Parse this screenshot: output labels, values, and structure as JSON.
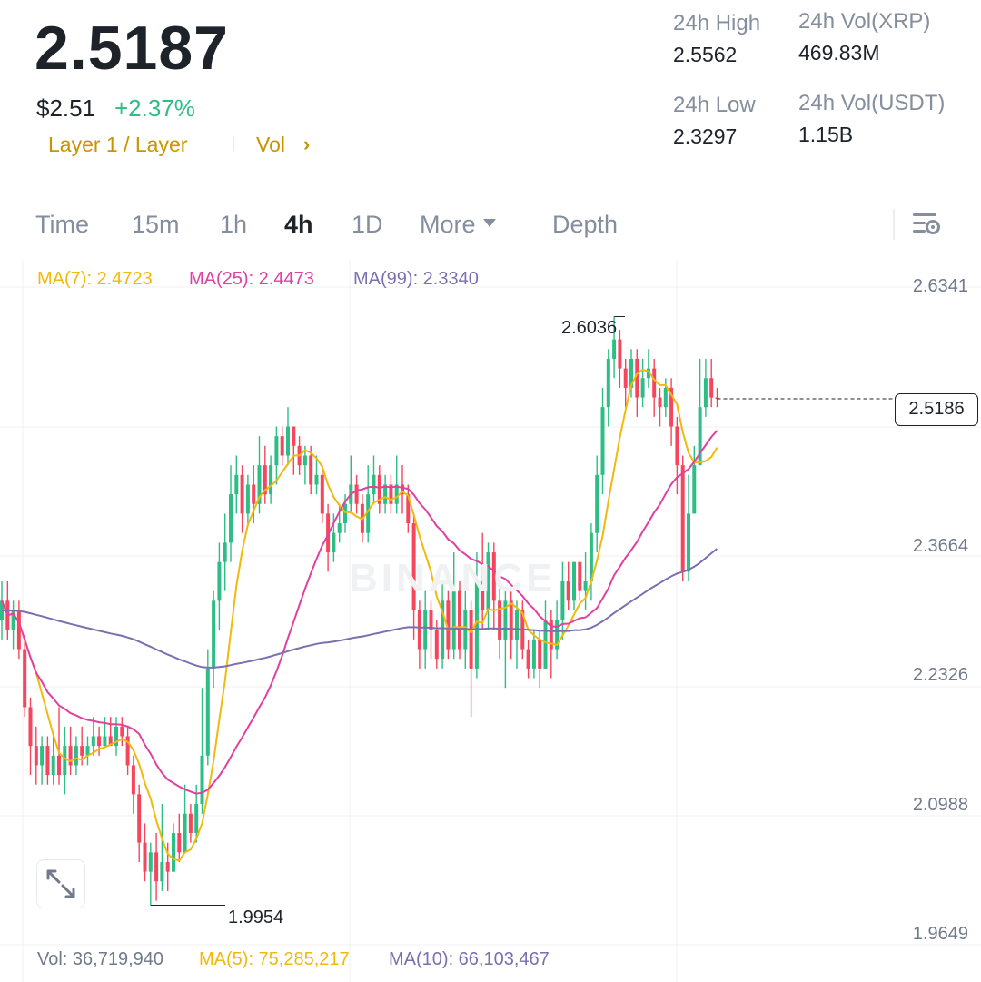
{
  "header": {
    "last_price": "2.5187",
    "usd_price": "$2.51",
    "change_pct": "+2.37%",
    "tags": [
      "Layer 1 / Layer",
      "Vol"
    ],
    "chevron": "›"
  },
  "stats": {
    "high_label": "24h High",
    "high_value": "2.5562",
    "low_label": "24h Low",
    "low_value": "2.3297",
    "vol_base_label": "24h Vol(XRP)",
    "vol_base_value": "469.83M",
    "vol_quote_label": "24h Vol(USDT)",
    "vol_quote_value": "1.15B"
  },
  "toolbar": {
    "tabs": [
      "Time",
      "15m",
      "1h",
      "4h",
      "1D",
      "More",
      "Depth"
    ],
    "active_tab": "4h",
    "settings_icon": "chart-settings-icon"
  },
  "indicators": {
    "ma7": "MA(7): 2.4723",
    "ma25": "MA(25): 2.4473",
    "ma99": "MA(99): 2.3340"
  },
  "volume": {
    "vol": "Vol: 36,719,940",
    "ma5": "MA(5): 75,285,217",
    "ma10": "MA(10): 66,103,467"
  },
  "watermark": "BINANCE",
  "colors": {
    "up": "#2ebd85",
    "down": "#f6465d",
    "ma7": "#f0b90b",
    "ma25": "#e040a0",
    "ma99": "#7b6fb0",
    "accent": "#c99400"
  },
  "chart_data": {
    "type": "candlestick",
    "timeframe": "4h",
    "y_ticks": [
      "2.6341",
      "2.3664",
      "2.2326",
      "2.0988",
      "1.9649"
    ],
    "ylim": [
      1.9649,
      2.6341
    ],
    "current_price": "2.5186",
    "high_marker": "2.6036",
    "low_marker": "1.9954",
    "candles": [
      [
        2.29,
        2.31,
        2.33,
        2.27
      ],
      [
        2.31,
        2.28,
        2.33,
        2.27
      ],
      [
        2.28,
        2.3,
        2.31,
        2.26
      ],
      [
        2.3,
        2.26,
        2.31,
        2.25
      ],
      [
        2.26,
        2.2,
        2.27,
        2.19
      ],
      [
        2.2,
        2.16,
        2.21,
        2.13
      ],
      [
        2.16,
        2.14,
        2.18,
        2.12
      ],
      [
        2.14,
        2.16,
        2.17,
        2.12
      ],
      [
        2.16,
        2.13,
        2.17,
        2.12
      ],
      [
        2.13,
        2.15,
        2.17,
        2.12
      ],
      [
        2.15,
        2.13,
        2.2,
        2.12
      ],
      [
        2.13,
        2.16,
        2.18,
        2.11
      ],
      [
        2.16,
        2.14,
        2.18,
        2.13
      ],
      [
        2.14,
        2.16,
        2.17,
        2.13
      ],
      [
        2.16,
        2.15,
        2.18,
        2.14
      ],
      [
        2.15,
        2.16,
        2.17,
        2.14
      ],
      [
        2.16,
        2.17,
        2.19,
        2.15
      ],
      [
        2.17,
        2.16,
        2.18,
        2.15
      ],
      [
        2.16,
        2.17,
        2.19,
        2.16
      ],
      [
        2.17,
        2.16,
        2.19,
        2.16
      ],
      [
        2.16,
        2.18,
        2.19,
        2.15
      ],
      [
        2.18,
        2.17,
        2.19,
        2.16
      ],
      [
        2.17,
        2.14,
        2.18,
        2.13
      ],
      [
        2.14,
        2.11,
        2.15,
        2.09
      ],
      [
        2.11,
        2.06,
        2.12,
        2.04
      ],
      [
        2.06,
        2.03,
        2.08,
        2.02
      ],
      [
        2.03,
        2.05,
        2.06,
        1.9954
      ],
      [
        2.05,
        2.02,
        2.07,
        2.0
      ],
      [
        2.02,
        2.04,
        2.1,
        2.01
      ],
      [
        2.04,
        2.03,
        2.06,
        2.01
      ],
      [
        2.03,
        2.07,
        2.08,
        2.03
      ],
      [
        2.07,
        2.05,
        2.09,
        2.04
      ],
      [
        2.05,
        2.09,
        2.12,
        2.05
      ],
      [
        2.09,
        2.07,
        2.1,
        2.06
      ],
      [
        2.07,
        2.1,
        2.12,
        2.06
      ],
      [
        2.1,
        2.15,
        2.22,
        2.09
      ],
      [
        2.15,
        2.24,
        2.26,
        2.14
      ],
      [
        2.24,
        2.31,
        2.32,
        2.22
      ],
      [
        2.31,
        2.35,
        2.37,
        2.28
      ],
      [
        2.35,
        2.37,
        2.4,
        2.32
      ],
      [
        2.37,
        2.42,
        2.45,
        2.35
      ],
      [
        2.42,
        2.44,
        2.46,
        2.4
      ],
      [
        2.44,
        2.4,
        2.45,
        2.38
      ],
      [
        2.4,
        2.43,
        2.44,
        2.39
      ],
      [
        2.43,
        2.41,
        2.45,
        2.39
      ],
      [
        2.41,
        2.45,
        2.48,
        2.4
      ],
      [
        2.45,
        2.42,
        2.47,
        2.41
      ],
      [
        2.42,
        2.45,
        2.46,
        2.41
      ],
      [
        2.45,
        2.48,
        2.49,
        2.43
      ],
      [
        2.48,
        2.46,
        2.49,
        2.45
      ],
      [
        2.46,
        2.49,
        2.51,
        2.45
      ],
      [
        2.49,
        2.47,
        2.49,
        2.44
      ],
      [
        2.47,
        2.45,
        2.48,
        2.44
      ],
      [
        2.45,
        2.46,
        2.47,
        2.43
      ],
      [
        2.46,
        2.43,
        2.47,
        2.42
      ],
      [
        2.43,
        2.44,
        2.46,
        2.42
      ],
      [
        2.44,
        2.4,
        2.45,
        2.39
      ],
      [
        2.4,
        2.36,
        2.41,
        2.34
      ],
      [
        2.36,
        2.38,
        2.4,
        2.35
      ],
      [
        2.38,
        2.39,
        2.41,
        2.37
      ],
      [
        2.39,
        2.41,
        2.42,
        2.38
      ],
      [
        2.41,
        2.43,
        2.46,
        2.4
      ],
      [
        2.43,
        2.41,
        2.44,
        2.4
      ],
      [
        2.41,
        2.38,
        2.42,
        2.37
      ],
      [
        2.38,
        2.42,
        2.45,
        2.37
      ],
      [
        2.42,
        2.44,
        2.46,
        2.41
      ],
      [
        2.44,
        2.41,
        2.45,
        2.4
      ],
      [
        2.41,
        2.43,
        2.44,
        2.4
      ],
      [
        2.43,
        2.41,
        2.44,
        2.4
      ],
      [
        2.41,
        2.43,
        2.46,
        2.4
      ],
      [
        2.43,
        2.42,
        2.45,
        2.4
      ],
      [
        2.42,
        2.39,
        2.43,
        2.38
      ],
      [
        2.39,
        2.3,
        2.4,
        2.27
      ],
      [
        2.3,
        2.26,
        2.31,
        2.24
      ],
      [
        2.26,
        2.3,
        2.32,
        2.24
      ],
      [
        2.3,
        2.28,
        2.31,
        2.25
      ],
      [
        2.28,
        2.25,
        2.29,
        2.24
      ],
      [
        2.25,
        2.31,
        2.33,
        2.24
      ],
      [
        2.31,
        2.26,
        2.32,
        2.25
      ],
      [
        2.26,
        2.32,
        2.36,
        2.25
      ],
      [
        2.32,
        2.26,
        2.33,
        2.25
      ],
      [
        2.26,
        2.3,
        2.34,
        2.24
      ],
      [
        2.3,
        2.24,
        2.31,
        2.19
      ],
      [
        2.24,
        2.33,
        2.36,
        2.23
      ],
      [
        2.33,
        2.3,
        2.38,
        2.28
      ],
      [
        2.3,
        2.36,
        2.37,
        2.28
      ],
      [
        2.36,
        2.31,
        2.37,
        2.28
      ],
      [
        2.31,
        2.27,
        2.33,
        2.25
      ],
      [
        2.27,
        2.31,
        2.32,
        2.22
      ],
      [
        2.31,
        2.27,
        2.32,
        2.25
      ],
      [
        2.27,
        2.3,
        2.31,
        2.24
      ],
      [
        2.3,
        2.26,
        2.31,
        2.25
      ],
      [
        2.26,
        2.24,
        2.27,
        2.23
      ],
      [
        2.24,
        2.27,
        2.28,
        2.23
      ],
      [
        2.27,
        2.24,
        2.28,
        2.22
      ],
      [
        2.24,
        2.29,
        2.31,
        2.24
      ],
      [
        2.29,
        2.26,
        2.3,
        2.23
      ],
      [
        2.26,
        2.29,
        2.31,
        2.25
      ],
      [
        2.29,
        2.33,
        2.35,
        2.27
      ],
      [
        2.33,
        2.31,
        2.35,
        2.3
      ],
      [
        2.31,
        2.35,
        2.35,
        2.3
      ],
      [
        2.35,
        2.32,
        2.35,
        2.31
      ],
      [
        2.32,
        2.33,
        2.36,
        2.3
      ],
      [
        2.33,
        2.38,
        2.39,
        2.31
      ],
      [
        2.38,
        2.44,
        2.46,
        2.36
      ],
      [
        2.44,
        2.51,
        2.53,
        2.42
      ],
      [
        2.51,
        2.56,
        2.57,
        2.49
      ],
      [
        2.56,
        2.58,
        2.6036,
        2.54
      ],
      [
        2.58,
        2.55,
        2.59,
        2.53
      ],
      [
        2.55,
        2.53,
        2.56,
        2.51
      ],
      [
        2.53,
        2.56,
        2.57,
        2.52
      ],
      [
        2.56,
        2.52,
        2.57,
        2.5
      ],
      [
        2.52,
        2.54,
        2.56,
        2.51
      ],
      [
        2.54,
        2.55,
        2.57,
        2.53
      ],
      [
        2.55,
        2.52,
        2.56,
        2.5
      ],
      [
        2.52,
        2.51,
        2.53,
        2.49
      ],
      [
        2.51,
        2.53,
        2.54,
        2.5
      ],
      [
        2.53,
        2.49,
        2.54,
        2.47
      ],
      [
        2.49,
        2.45,
        2.5,
        2.42
      ],
      [
        2.45,
        2.34,
        2.46,
        2.33
      ],
      [
        2.34,
        2.4,
        2.44,
        2.33
      ],
      [
        2.4,
        2.45,
        2.47,
        2.4
      ],
      [
        2.45,
        2.51,
        2.56,
        2.45
      ],
      [
        2.51,
        2.54,
        2.56,
        2.5
      ],
      [
        2.54,
        2.52,
        2.56,
        2.51
      ],
      [
        2.52,
        2.5186,
        2.53,
        2.51
      ]
    ]
  }
}
